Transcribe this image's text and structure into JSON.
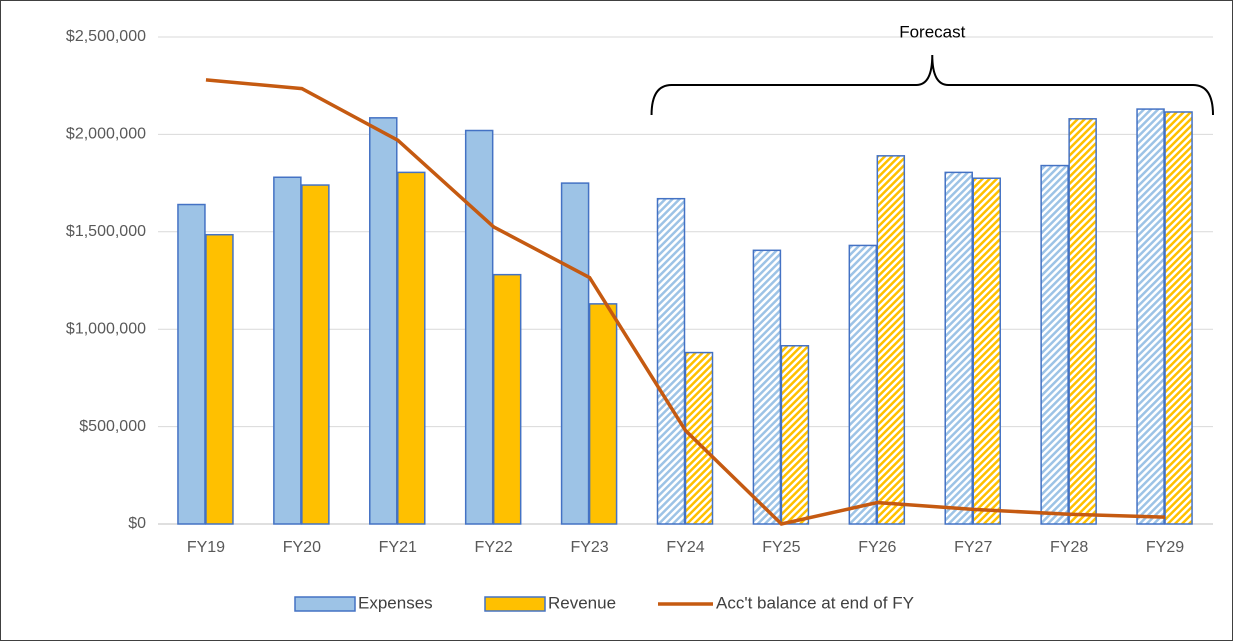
{
  "chart_data": {
    "type": "bar",
    "categories": [
      "FY19",
      "FY20",
      "FY21",
      "FY22",
      "FY23",
      "FY24",
      "FY25",
      "FY26",
      "FY27",
      "FY28",
      "FY29"
    ],
    "series": [
      {
        "name": "Expenses",
        "type": "bar",
        "color": "#9dc3e6",
        "edge": "#4472c4",
        "values": [
          1640000,
          1780000,
          2085000,
          2020000,
          1750000,
          1670000,
          1405000,
          1430000,
          1805000,
          1840000,
          2130000
        ]
      },
      {
        "name": "Revenue",
        "type": "bar",
        "color": "#ffc000",
        "edge": "#4472c4",
        "values": [
          1485000,
          1740000,
          1805000,
          1280000,
          1130000,
          880000,
          915000,
          1890000,
          1775000,
          2080000,
          2115000
        ]
      },
      {
        "name": "Acc't balance at end of FY",
        "type": "line",
        "color": "#c55a11",
        "values": [
          2280000,
          2235000,
          1970000,
          1525000,
          1265000,
          480000,
          0,
          110000,
          75000,
          50000,
          35000
        ]
      }
    ],
    "annotation": {
      "text": "Forecast",
      "from": "FY24",
      "to": "FY29",
      "hatched": true
    },
    "ylim": [
      0,
      2500000
    ],
    "yticks": [
      {
        "value": 0,
        "label": "$0"
      },
      {
        "value": 500000,
        "label": "$500,000"
      },
      {
        "value": 1000000,
        "label": "$1,000,000"
      },
      {
        "value": 1500000,
        "label": "$1,500,000"
      },
      {
        "value": 2000000,
        "label": "$2,000,000"
      },
      {
        "value": 2500000,
        "label": "$2,500,000"
      }
    ],
    "grid": true,
    "legend": "bottom"
  }
}
